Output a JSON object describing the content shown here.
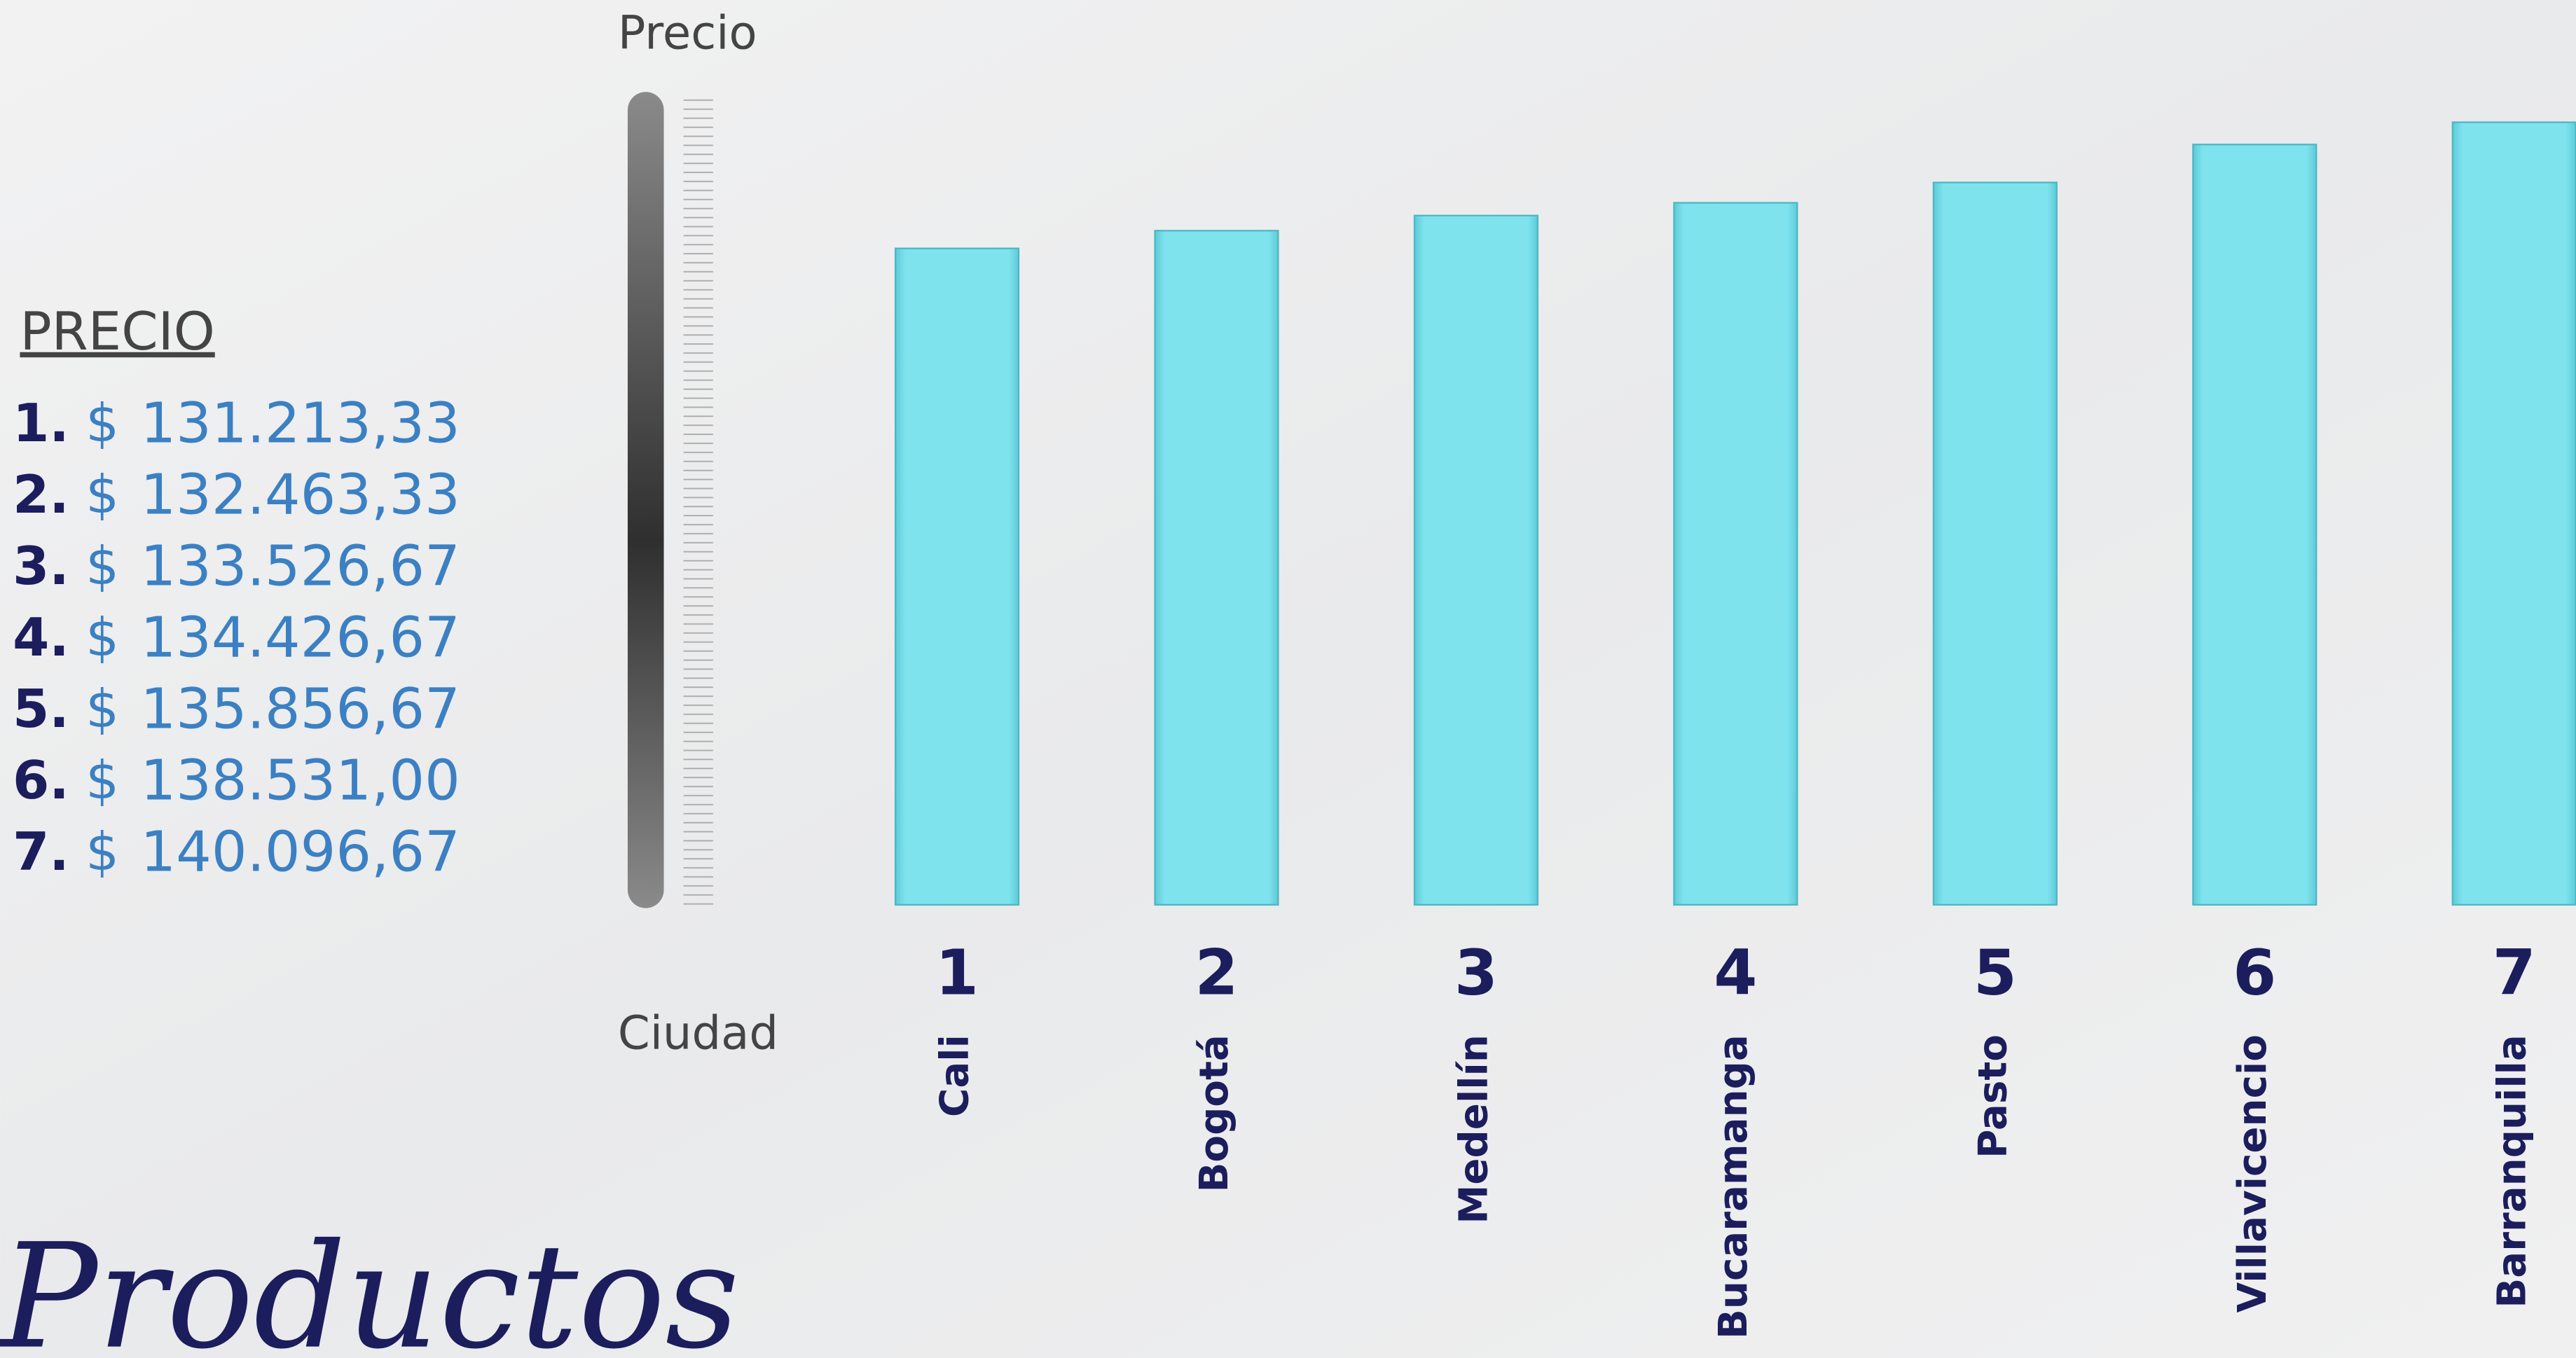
{
  "chart_data": {
    "type": "bar",
    "y_label": "Precio",
    "x_label": "Ciudad",
    "list_title": "PRECIO",
    "list_numbers": [
      "1.",
      "2.",
      "3.",
      "4.",
      "5.",
      "6.",
      "7."
    ],
    "currency": "$",
    "bar_numbers": [
      "1",
      "2",
      "3",
      "4",
      "5",
      "6",
      "7"
    ],
    "categories": [
      "Cali",
      "Bogotá",
      "Medellín",
      "Bucaramanga",
      "Pasto",
      "Villavicencio",
      "Barranquilla"
    ],
    "values": [
      131213.33,
      132463.33,
      133526.67,
      134426.67,
      135856.67,
      138531.0,
      140096.67
    ],
    "value_labels": [
      "131.213,33",
      "132.463,33",
      "133.526,67",
      "134.426,67",
      "135.856,67",
      "138.531,00",
      "140.096,67"
    ],
    "color": "#7fe3ee",
    "ylim": [
      85000,
      142000
    ],
    "footer_text": "Productos"
  }
}
